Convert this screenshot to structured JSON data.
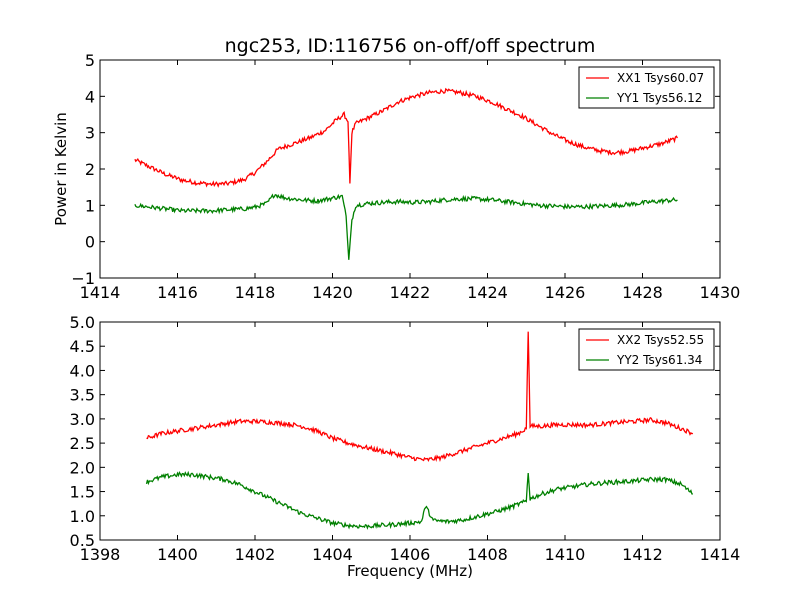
{
  "chart_data": [
    {
      "type": "line",
      "title": "ngc253, ID:116756 on-off/off spectrum",
      "xlabel": "",
      "ylabel": "Power in Kelvin",
      "xlim": [
        1414,
        1430
      ],
      "ylim": [
        -1,
        5
      ],
      "xticks": [
        "1414",
        "1416",
        "1418",
        "1420",
        "1422",
        "1424",
        "1426",
        "1428",
        "1430"
      ],
      "yticks": [
        "−1",
        "0",
        "1",
        "2",
        "3",
        "4",
        "5"
      ],
      "grid": false,
      "legend_position": "top-right",
      "series": [
        {
          "name": "XX1 Tsys60.07",
          "color": "#ff0000",
          "x": [
            1414.9,
            1415.3,
            1415.7,
            1416.1,
            1416.5,
            1416.9,
            1417.3,
            1417.7,
            1418.0,
            1418.3,
            1418.6,
            1419.0,
            1419.4,
            1419.8,
            1420.1,
            1420.3,
            1420.4,
            1420.45,
            1420.5,
            1420.6,
            1420.9,
            1421.3,
            1421.7,
            1422.1,
            1422.5,
            1422.9,
            1423.3,
            1423.7,
            1424.1,
            1424.5,
            1424.9,
            1425.3,
            1425.7,
            1426.1,
            1426.5,
            1426.9,
            1427.3,
            1427.7,
            1428.1,
            1428.5,
            1428.9
          ],
          "y": [
            2.25,
            2.05,
            1.85,
            1.7,
            1.62,
            1.58,
            1.6,
            1.7,
            1.9,
            2.2,
            2.55,
            2.7,
            2.85,
            3.05,
            3.35,
            3.5,
            3.3,
            1.6,
            3.0,
            3.25,
            3.4,
            3.6,
            3.85,
            4.0,
            4.1,
            4.15,
            4.1,
            4.0,
            3.85,
            3.65,
            3.45,
            3.2,
            2.95,
            2.75,
            2.6,
            2.5,
            2.45,
            2.5,
            2.6,
            2.7,
            2.85
          ]
        },
        {
          "name": "YY1 Tsys56.12",
          "color": "#008000",
          "x": [
            1414.9,
            1415.3,
            1415.7,
            1416.1,
            1416.5,
            1416.9,
            1417.3,
            1417.7,
            1418.0,
            1418.3,
            1418.5,
            1418.8,
            1419.2,
            1419.6,
            1420.0,
            1420.25,
            1420.35,
            1420.42,
            1420.5,
            1420.6,
            1420.9,
            1421.3,
            1421.7,
            1422.1,
            1422.5,
            1422.9,
            1423.3,
            1423.7,
            1424.1,
            1424.5,
            1424.9,
            1425.3,
            1425.7,
            1426.1,
            1426.5,
            1426.9,
            1427.3,
            1427.7,
            1428.1,
            1428.5,
            1428.9
          ],
          "y": [
            1.0,
            0.95,
            0.9,
            0.85,
            0.85,
            0.85,
            0.88,
            0.9,
            0.95,
            1.05,
            1.3,
            1.2,
            1.15,
            1.12,
            1.2,
            1.25,
            0.7,
            -0.5,
            0.6,
            1.0,
            1.05,
            1.08,
            1.1,
            1.08,
            1.1,
            1.15,
            1.18,
            1.18,
            1.15,
            1.1,
            1.05,
            1.0,
            0.98,
            0.96,
            0.96,
            0.98,
            1.0,
            1.03,
            1.08,
            1.12,
            1.15
          ]
        }
      ]
    },
    {
      "type": "line",
      "title": "",
      "xlabel": "Frequency (MHz)",
      "ylabel": "",
      "xlim": [
        1398,
        1414
      ],
      "ylim": [
        0.5,
        5.0
      ],
      "xticks": [
        "1398",
        "1400",
        "1402",
        "1404",
        "1406",
        "1408",
        "1410",
        "1412",
        "1414"
      ],
      "yticks": [
        "0.5",
        "1.0",
        "1.5",
        "2.0",
        "2.5",
        "3.0",
        "3.5",
        "4.0",
        "4.5",
        "5.0"
      ],
      "grid": false,
      "legend_position": "top-right",
      "series": [
        {
          "name": "XX2 Tsys52.55",
          "color": "#ff0000",
          "x": [
            1399.2,
            1399.6,
            1400.0,
            1400.4,
            1400.8,
            1401.2,
            1401.6,
            1402.0,
            1402.4,
            1402.8,
            1403.2,
            1403.6,
            1404.0,
            1404.4,
            1404.8,
            1405.2,
            1405.6,
            1406.0,
            1406.4,
            1406.8,
            1407.2,
            1407.6,
            1408.0,
            1408.4,
            1408.8,
            1409.0,
            1409.05,
            1409.1,
            1409.4,
            1409.8,
            1410.2,
            1410.6,
            1411.0,
            1411.4,
            1411.8,
            1412.2,
            1412.6,
            1413.0,
            1413.3
          ],
          "y": [
            2.6,
            2.7,
            2.75,
            2.8,
            2.85,
            2.9,
            2.95,
            2.95,
            2.93,
            2.9,
            2.85,
            2.75,
            2.6,
            2.5,
            2.42,
            2.35,
            2.28,
            2.2,
            2.15,
            2.2,
            2.3,
            2.4,
            2.5,
            2.6,
            2.7,
            2.8,
            4.8,
            2.85,
            2.85,
            2.88,
            2.88,
            2.87,
            2.9,
            2.93,
            2.95,
            2.98,
            2.92,
            2.8,
            2.7
          ]
        },
        {
          "name": "YY2 Tsys61.34",
          "color": "#008000",
          "x": [
            1399.2,
            1399.6,
            1400.0,
            1400.4,
            1400.8,
            1401.2,
            1401.6,
            1402.0,
            1402.4,
            1402.8,
            1403.2,
            1403.6,
            1404.0,
            1404.4,
            1404.8,
            1405.2,
            1405.6,
            1406.0,
            1406.3,
            1406.4,
            1406.6,
            1407.0,
            1407.4,
            1407.8,
            1408.2,
            1408.6,
            1409.0,
            1409.05,
            1409.1,
            1409.4,
            1409.8,
            1410.2,
            1410.6,
            1411.0,
            1411.4,
            1411.8,
            1412.2,
            1412.6,
            1413.0,
            1413.3
          ],
          "y": [
            1.7,
            1.8,
            1.85,
            1.85,
            1.8,
            1.75,
            1.65,
            1.5,
            1.35,
            1.2,
            1.05,
            0.95,
            0.85,
            0.8,
            0.78,
            0.8,
            0.82,
            0.85,
            0.88,
            1.2,
            0.9,
            0.88,
            0.92,
            1.0,
            1.08,
            1.18,
            1.3,
            1.9,
            1.35,
            1.45,
            1.55,
            1.6,
            1.65,
            1.68,
            1.7,
            1.72,
            1.75,
            1.75,
            1.65,
            1.45
          ]
        }
      ]
    }
  ]
}
